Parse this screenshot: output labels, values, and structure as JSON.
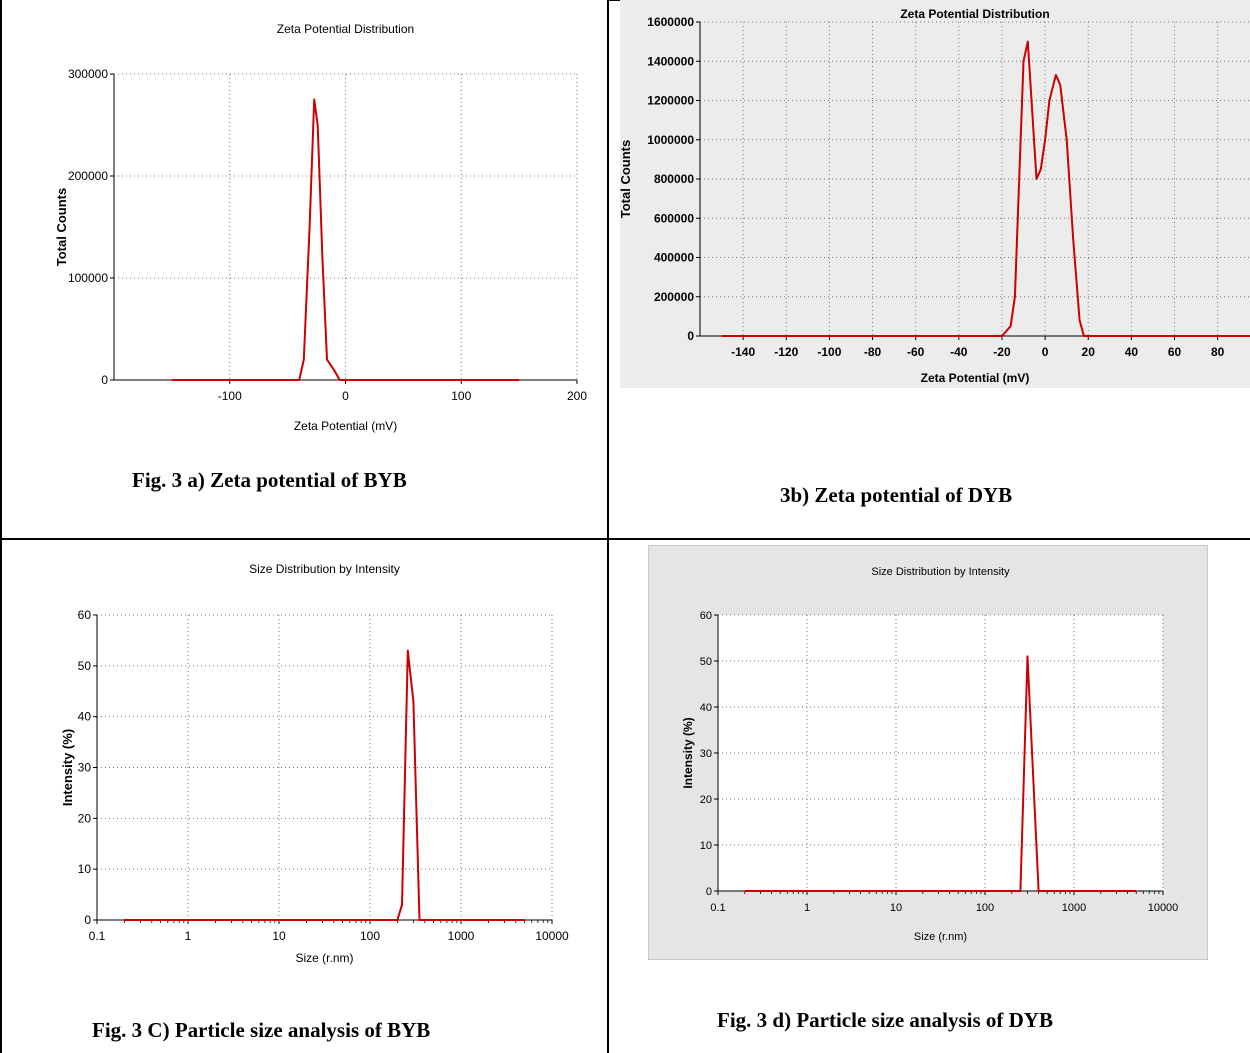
{
  "captions": {
    "a": "Fig. 3 a) Zeta potential of BYB",
    "b": "3b) Zeta potential of DYB",
    "c": "Fig. 3 C) Particle size analysis of BYB",
    "d": "Fig. 3 d) Particle size analysis of DYB"
  },
  "chart_data": [
    {
      "id": "a",
      "type": "line",
      "title": "Zeta Potential Distribution",
      "xlabel": "Zeta Potential (mV)",
      "ylabel": "Total Counts",
      "xlim": [
        -200,
        200
      ],
      "ylim": [
        0,
        300000
      ],
      "xticks": [
        -100,
        0,
        100,
        200
      ],
      "yticks": [
        0,
        100000,
        200000,
        300000
      ],
      "grid": true,
      "scale": "linear",
      "background": "#ffffff",
      "line_color": "#cc0000",
      "x": [
        -150,
        -40,
        -36,
        -31,
        -27,
        -24,
        -20,
        -16,
        -10,
        -5,
        0,
        150
      ],
      "y": [
        0,
        0,
        20000,
        150000,
        275000,
        250000,
        120000,
        20000,
        10000,
        0,
        0,
        0
      ]
    },
    {
      "id": "b",
      "type": "line",
      "title": "Zeta Potential Distribution",
      "xlabel": "Zeta Potential (mV)",
      "ylabel": "Total Counts",
      "xlim": [
        -160,
        95
      ],
      "ylim": [
        0,
        1600000
      ],
      "xticks": [
        -140,
        -120,
        -100,
        -80,
        -60,
        -40,
        -20,
        0,
        20,
        40,
        60,
        80
      ],
      "yticks": [
        0,
        200000,
        400000,
        600000,
        800000,
        1000000,
        1200000,
        1400000,
        1600000
      ],
      "grid": true,
      "scale": "linear",
      "background": "#ececec",
      "line_color": "#cc0000",
      "x": [
        -150,
        -20,
        -16,
        -14,
        -12,
        -10,
        -8,
        -4,
        -2,
        0,
        2,
        5,
        7,
        10,
        13,
        16,
        18,
        95
      ],
      "y": [
        0,
        0,
        50000,
        200000,
        800000,
        1400000,
        1500000,
        800000,
        850000,
        1000000,
        1200000,
        1330000,
        1280000,
        1000000,
        500000,
        80000,
        0,
        0
      ]
    },
    {
      "id": "c",
      "type": "line",
      "title": "Size Distribution by Intensity",
      "xlabel": "Size (r.nm)",
      "ylabel": "Intensity (%)",
      "xlim": [
        0.1,
        10000
      ],
      "ylim": [
        0,
        60
      ],
      "xticks": [
        0.1,
        1,
        10,
        100,
        1000,
        10000
      ],
      "xtick_labels": [
        "0.1",
        "1",
        "10",
        "100",
        "1000",
        "10000"
      ],
      "yticks": [
        0,
        10,
        20,
        30,
        40,
        50,
        60
      ],
      "grid": true,
      "scale": "log",
      "background": "#ffffff",
      "line_color": "#cc0000",
      "x": [
        0.2,
        200,
        225,
        260,
        300,
        350,
        5000
      ],
      "y": [
        0,
        0,
        3,
        53,
        43,
        0,
        0
      ]
    },
    {
      "id": "d",
      "type": "line",
      "title": "Size Distribution by Intensity",
      "xlabel": "Size (r.nm)",
      "ylabel": "Intensity (%)",
      "xlim": [
        0.1,
        10000
      ],
      "ylim": [
        0,
        60
      ],
      "xticks": [
        0.1,
        1,
        10,
        100,
        1000,
        10000
      ],
      "xtick_labels": [
        "0.1",
        "1",
        "10",
        "100",
        "1000",
        "10000"
      ],
      "yticks": [
        0,
        10,
        20,
        30,
        40,
        50,
        60
      ],
      "grid": true,
      "scale": "log",
      "background": "#ffffff",
      "line_color": "#cc0000",
      "x": [
        0.2,
        250,
        300,
        400,
        5000
      ],
      "y": [
        0,
        0,
        51,
        0,
        0
      ]
    }
  ]
}
